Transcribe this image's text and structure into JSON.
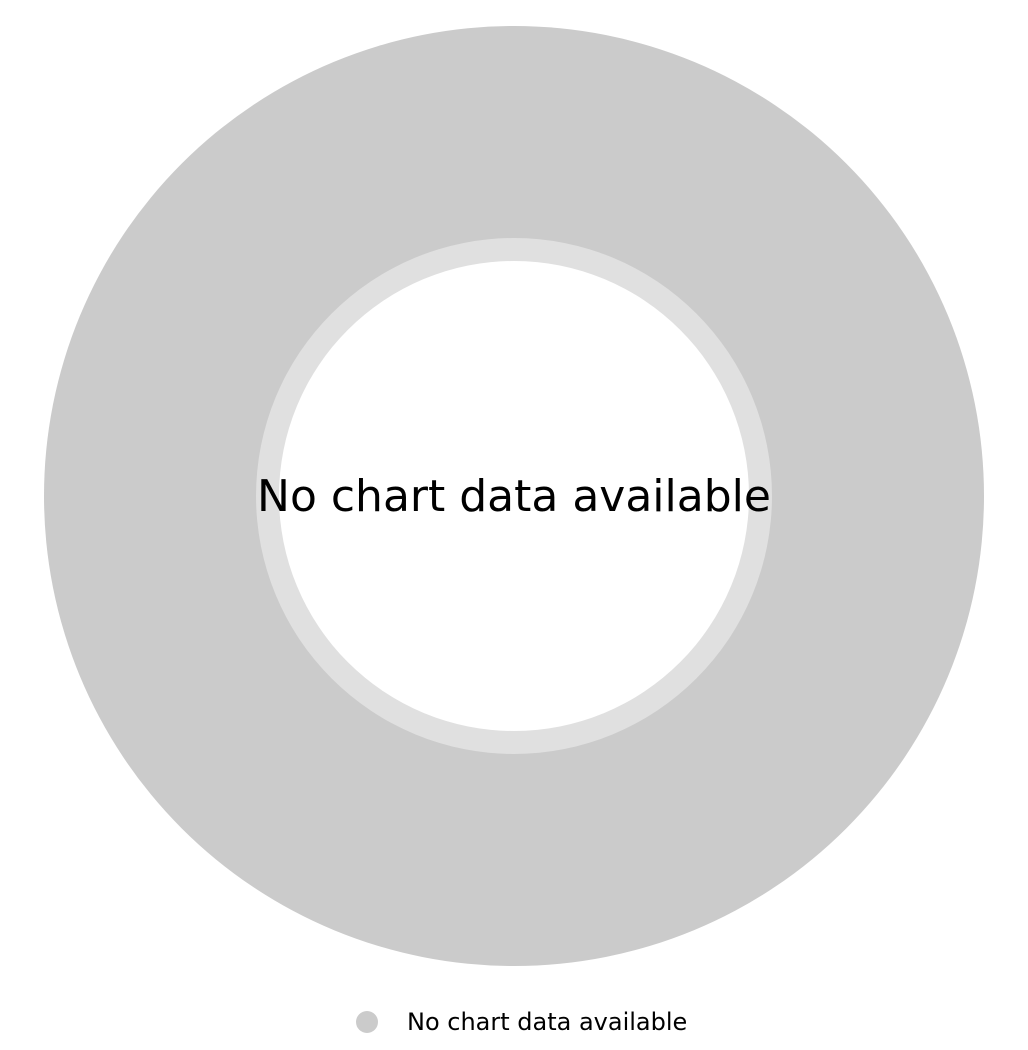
{
  "chart_data": {
    "type": "pie",
    "variant": "donut",
    "center_label": "No chart data available",
    "slices": [],
    "legend": {
      "placement": "bottom",
      "items": [
        {
          "label": "No chart data available",
          "color": "#cbcbcb"
        }
      ]
    }
  },
  "colors": {
    "ring": "#cbcbcb",
    "inner_ring": "#e0e0e0",
    "hole": "#ffffff",
    "text": "#000000"
  }
}
